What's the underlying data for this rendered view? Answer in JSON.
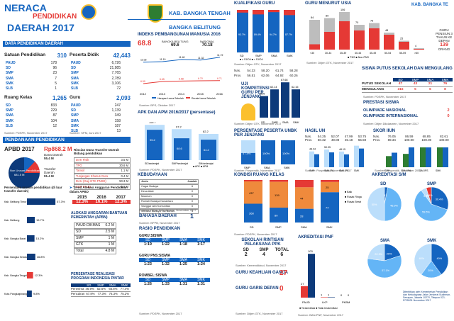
{
  "header": {
    "title1": "NERACA",
    "title2": "PENDIDIKAN",
    "title3": "DAERAH 2017",
    "region1": "KAB. BANGKA TENGAH",
    "region2": "BANGKA BELITUNG"
  },
  "data_pendidikan": {
    "title": "DATA PENDIDIKAN DAERAH",
    "satuan": {
      "label": "Satuan Pendidikan",
      "total": "310",
      "items": [
        [
          "PAUD",
          "178"
        ],
        [
          "SD",
          "96"
        ],
        [
          "SMP",
          "23"
        ],
        [
          "SMA",
          "7"
        ],
        [
          "SMK",
          "5"
        ],
        [
          "SLB",
          "1"
        ]
      ]
    },
    "peserta": {
      "label": "Peserta Didik",
      "total": "42,443",
      "items": [
        [
          "PAUD",
          "6,726"
        ],
        [
          "SD",
          "21,985"
        ],
        [
          "SMP",
          "7,765"
        ],
        [
          "SMA",
          "2,789"
        ],
        [
          "SMK",
          "3,106"
        ],
        [
          "SLB",
          "72"
        ]
      ]
    },
    "ruang": {
      "label": "Ruang Kelas",
      "total": "1,265",
      "items": [
        [
          "SD",
          "833"
        ],
        [
          "SMP",
          "229"
        ],
        [
          "SMA",
          "87"
        ],
        [
          "SMK",
          "104"
        ],
        [
          "SLB",
          "12"
        ]
      ]
    },
    "guru": {
      "label": "Guru",
      "total": "2,093",
      "items": [
        [
          "PAUD",
          "247"
        ],
        [
          "SD",
          "1,139"
        ],
        [
          "SMP",
          "349"
        ],
        [
          "SMA",
          "158"
        ],
        [
          "SMK",
          "187"
        ],
        [
          "SLB",
          "13"
        ]
      ]
    },
    "src1": "Sumber: PDSPK, November 2017",
    "src2": "Sumber: SPM, Juni 2017"
  },
  "pendanaan": {
    "title": "PENDANAAN PENDIDIKAN",
    "apbd_label": "APBD 2017",
    "apbd_val": "Rp868.2 M",
    "dana_daerah_lbl": "Dana Daerah",
    "dana_daerah_val": "55.4 M",
    "transfer_lbl": "Transfer Daerah",
    "transfer_val": "91.4 M",
    "non_urusan_lbl": "Non Urusan Pendidikan",
    "non_urusan_val": "681.5 M",
    "rincian_title": "Rincian Dana Transfer Daerah Bidang pendidikan",
    "rincian": [
      [
        "DAK Fisik",
        "3.5 M"
      ],
      [
        "TPG",
        "30.6 M"
      ],
      [
        "Tamsil",
        "1.1 M"
      ],
      [
        "Tunjangan Khusus Guru",
        "0.4 M"
      ],
      [
        "DAU (Gaji GTK PNSD)",
        "50.3 M"
      ],
      [
        "BOP PAUD",
        "1.6 M"
      ]
    ],
    "persen_title": "Persentase urusan pendidikan (di luar transfer daerah)",
    "trend_title": "Trend Alokasi Anggaran Pendidikan dalam APBD",
    "trend_years": [
      "2015",
      "2016",
      "2017"
    ],
    "trend_vals": [
      "12.3%",
      "16.1%",
      "12.3%"
    ],
    "alokasi_title": "ALOKASI ANGGARAN BANTUAN PEMERINTAH (APBN)",
    "alokasi": [
      [
        "PAUD-DIKMAS",
        "0.2 M"
      ],
      [
        "SD",
        "2.5 M"
      ],
      [
        "SMP",
        "1 M"
      ],
      [
        "GTK",
        "1 M"
      ],
      [
        "Total",
        "4.8 M"
      ]
    ],
    "realisasi_title": "PERSENTASE REALISASI PROGRAM INDONESIA PINTAR",
    "realisasi_head": [
      "",
      "SD",
      "SMP",
      "SMA",
      "SMK"
    ],
    "realisasi_rows": [
      [
        "Penerima",
        "46.9%",
        "52.6%",
        "65.5%",
        "77.4%"
      ],
      [
        "Pencairan",
        "67.8%",
        "77.3%",
        "76.3%",
        "75.2%"
      ]
    ],
    "kab_bars": [
      [
        "Kab. Belitung Timur",
        "57.3%"
      ],
      [
        "Kab. Belitung",
        "15.7%"
      ],
      [
        "Kab. Bangka Barat",
        "15.2%"
      ],
      [
        "Kab. Bangka Selatan",
        "16.8%"
      ],
      [
        "Kab. Bangka Tengah",
        "12.3%"
      ],
      [
        "Kota Pangkalpinang",
        "9.8%"
      ]
    ]
  },
  "ipm": {
    "title": "INDEKS PEMBANGUNAN MANUSIA 2016",
    "val": "68.8",
    "bb_lbl": "BANGKA BELITUNG",
    "bb_val": "69.6",
    "nas_lbl": "NASIONAL",
    "nas_val": "70.18",
    "years": [
      "2012",
      "2013",
      "2014",
      "2015",
      "2016"
    ],
    "hls": [
      "11.03",
      "11.10",
      "11.40",
      "11.32",
      "11.72"
    ],
    "rls": [
      "6.50",
      "6.65",
      "6.68",
      "6.70",
      "6.71"
    ],
    "leg1": "Harapan Lama Sekolah",
    "leg2": "Rerata Lama Sekolah",
    "src": "Sumber: BPS, Oktober 2017"
  },
  "apk": {
    "title": "APK DAN APM 2016/2017 (persentase)",
    "cats": [
      "SD/sederajat",
      "SMP/sederajat",
      "SM/sederajat"
    ],
    "apk": [
      110.7,
      97.2,
      82.2
    ],
    "apm": [
      95.2,
      68.6,
      64.2
    ],
    "leg_apk": "APK",
    "leg_apm": "APM",
    "src": "Sumber: PDSPK, November 2017"
  },
  "kebudayaan": {
    "title": "KEBUDAYAAN",
    "items": [
      [
        "Jenis",
        "Jumlah"
      ],
      [
        "Cagar Budaya",
        "6"
      ],
      [
        "Desa Adat",
        "0"
      ],
      [
        "Museum",
        "0"
      ],
      [
        "Rumah Budaya Nusantara",
        "0"
      ],
      [
        "Sanggar dan Komunitas",
        "0"
      ],
      [
        "Warisan Budaya Tak Benda",
        "4"
      ]
    ],
    "src": "Sumber: Ditjen Kebudayaan, November 2017"
  },
  "bahasa": {
    "title": "BAHASA DAERAH",
    "val": "1",
    "src": "Sumber: BPPB, November 2017"
  },
  "rasio": {
    "title": "RASIO PENDIDIKAN",
    "guru_siswa": "GURU:SISWA",
    "heads": [
      "SD",
      "SMP",
      "SMA",
      "SMK"
    ],
    "gs": [
      "1:19",
      "1:22",
      "1:18",
      "1:17"
    ],
    "guru_pns": "GURU PNS:SISWA",
    "gp": [
      "1:23",
      "1:32",
      "1:25",
      "1:24"
    ],
    "rombel": "ROMBEL:SISWA",
    "rb": [
      "1:26",
      "1:33",
      "1:31",
      "1:31"
    ],
    "src": "Sumber: PDSPK, November 2017"
  },
  "kualifikasi": {
    "title": "KUALIFIKASI GURU",
    "cats": [
      "SD",
      "SMP",
      "SMA",
      "SMK"
    ],
    "s1": [
      93.7,
      89.4,
      94.7,
      87.7
    ],
    "leg1": "≥ S1/D4",
    "leg2": "< S1/D4",
    "src": "Sumber: Ditjen GTK, November 2017"
  },
  "un": {
    "title": "UJI KOMPETENSI GURU PER JENJANG",
    "cats": [
      "SD",
      "SMP",
      "SMA",
      "SMK"
    ],
    "vals": [
      56.9,
      62.14,
      67.68,
      62.15
    ],
    "nas_lbl": "Nas.",
    "nas": [
      "54.33",
      "58.20",
      "61.74",
      "58.28"
    ],
    "prov_lbl": "Prov.",
    "prov": [
      "56.51",
      "62.06",
      "64.92",
      "60.26"
    ],
    "src": "Sumber: Ditjen GTK, November 2017"
  },
  "usia": {
    "title": "GURU MENURUT USIA",
    "region": "KAB. BANGKA TE",
    "cats": [
      "<30",
      "30-34",
      "35-39",
      "40-44",
      "45-49",
      "50-54",
      "55-59",
      ">60"
    ],
    "vals": [
      84,
      89,
      106,
      70,
      75,
      48,
      25,
      4
    ],
    "pns": [
      15,
      50,
      80,
      54,
      60,
      42,
      22,
      2
    ],
    "leg1": "PNS",
    "leg2": "Non-PNS",
    "pensiun_lbl": "GURU PENSIUN 3 TAHUN KE DEPAN",
    "pensiun_val": "139",
    "pensiun_unit": "ORANG",
    "src": "Sumber: Ditjen GTK, November 2017"
  },
  "putus": {
    "title": "SISWA PUTUS SEKOLAH DAN MENGULANG",
    "heads": [
      "SD",
      "SMP",
      "SMA",
      "SMK"
    ],
    "rows": [
      [
        "PUTUS SEKOLAH",
        "47",
        "43",
        "21",
        "76"
      ],
      [
        "MENGULANG",
        "316",
        "5",
        "6",
        "8"
      ]
    ],
    "src": "Sumber: PDSPK, November 2017"
  },
  "prestasi": {
    "title": "PRESTASI SISWA",
    "items": [
      [
        "OLIMPIADE NASIONAL",
        "2"
      ],
      [
        "OLIMPIADE INTERNASIONAL",
        "0"
      ]
    ],
    "src": "Sumber: Ditjen Dikdasmen, November 2017"
  },
  "unbk": {
    "title": "PERSENTASE PESERTA UNBK PER JENJANG",
    "cats": [
      "SMP",
      "SMA",
      "SMK"
    ],
    "vals": [
      47.4,
      100,
      100
    ],
    "src": "Sumber: Puspendik, November 2017"
  },
  "hasil_un": {
    "title": "HASIL UN",
    "heads": [
      "SMP",
      "SMA IPA",
      "SMA IPS",
      "SMK"
    ],
    "nas": [
      "54.25",
      "52.07",
      "47.99",
      "53.75"
    ],
    "prov": [
      "50.32",
      "49.08",
      "45.18",
      "55.59"
    ],
    "cats": [
      "SMP",
      "SMA IPA",
      "SMA IPS",
      "SMK"
    ],
    "vals": [
      48.34,
      50.95,
      48.15,
      56.39
    ],
    "leg1": "2016",
    "leg2": "2017",
    "src": "Sumber: Puspendik, November 2017"
  },
  "skor_iiun": {
    "title": "SKOR IIUN",
    "nas": [
      "76.05",
      "86.59",
      "68.85",
      "82.61"
    ],
    "prov": [
      "89.34",
      "100.00",
      "100.00",
      "100.00"
    ],
    "cats": [
      "SMP",
      "SMA IPA",
      "SMA IPS",
      "SMK"
    ],
    "v16": [
      82.4,
      86.9,
      100,
      100
    ],
    "v17": [
      89.3,
      100,
      100,
      100
    ],
    "leg1": "2016",
    "leg2": "2017",
    "src": "Sumber: Puspendik, November 2017"
  },
  "kondisi": {
    "title": "KONDISI RUANG KELAS",
    "cats": [
      "SD",
      "SMP",
      "SMA",
      "SMK"
    ],
    "baik": [
      368,
      80,
      28,
      74
    ],
    "ringan": [
      437,
      139,
      44,
      25
    ],
    "berat": [
      28,
      10,
      15,
      5
    ],
    "leg": [
      "Baik",
      "Rusak Ringan",
      "Rusak Berat"
    ],
    "src": "Sumber: PDSPK, November 2017"
  },
  "ppk": {
    "title": "SEKOLAH RINTISAN PELAKSANA PPK",
    "heads": [
      "SD",
      "SMP",
      "TOTAL"
    ],
    "vals": [
      "2",
      "4",
      "6"
    ],
    "src": "Sumber: Kemendikbud, November 2017"
  },
  "keahlian": {
    "title": "GURU KEAHLIAN GANDA",
    "val": "27"
  },
  "garis": {
    "title": "GURU GARIS DEPAN",
    "val": "0",
    "src": "Sumber: Ditjen GTK, November 2017"
  },
  "pnf": {
    "title": "AKREDITASI PNF",
    "cats": [
      "PAUD",
      "LKP",
      "PKBM"
    ],
    "terakr": [
      27,
      1,
      0
    ],
    "tidak": [
      103,
      1,
      0
    ],
    "leg1": "Terakreditasi",
    "leg2": "Tidak terakreditasi",
    "src": "Sumber: BAN-PNF, November 2017"
  },
  "akreditasi": {
    "title": "AKREDITASI S/M",
    "pies": [
      {
        "label": "SD",
        "slices": [
          3.1,
          46.9,
          50.0
        ]
      },
      {
        "label": "SMP",
        "slices": [
          30.4,
          59.5,
          5.3,
          4.8
        ]
      },
      {
        "label": "SMA",
        "slices": [
          20.0,
          57.1,
          22.9
        ]
      },
      {
        "label": "SMK",
        "slices": [
          40.0,
          20.0,
          40.0
        ]
      }
    ],
    "colors": [
      "#1565c0",
      "#64b5f6",
      "#bbdefb",
      "#e53935"
    ],
    "footer": "Diterbitkan oleh Kementerian Pendidikan dan Kebudayaan Jalan Jenderal Sudirman, Senayan, Jakarta 10270, Telepon 021-5725031 November 2017"
  }
}
